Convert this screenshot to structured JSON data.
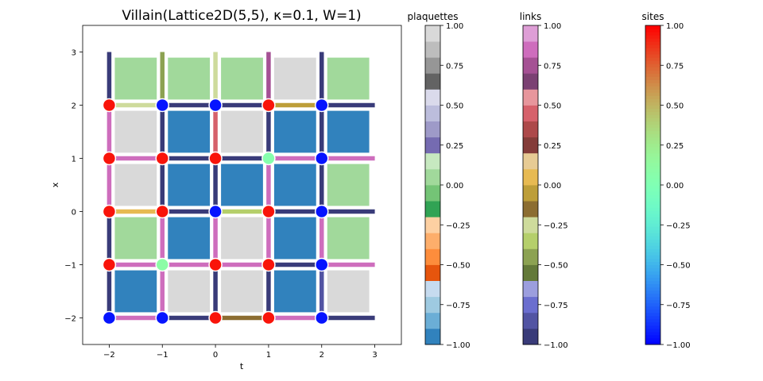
{
  "chart_data": {
    "type": "heatmap",
    "title": "Villain(Lattice2D(5,5), κ=0.1, W=1)",
    "xlabel": "t",
    "ylabel": "x",
    "xlim": [
      -2.5,
      3.5
    ],
    "ylim": [
      -2.5,
      3.5
    ],
    "xticks": [
      -2,
      -1,
      0,
      1,
      2,
      3
    ],
    "yticks": [
      -2,
      -1,
      0,
      1,
      2,
      3
    ],
    "site_t": [
      -2,
      -1,
      0,
      1,
      2
    ],
    "site_x": [
      -2,
      -1,
      0,
      1,
      2
    ],
    "plaquette_rows_x": [
      -2,
      -1,
      0,
      1,
      2
    ],
    "plaquettes": [
      [
        -0.95,
        0.95,
        0.95,
        -0.95,
        0.95
      ],
      [
        0.05,
        -0.95,
        0.95,
        -0.95,
        0.05
      ],
      [
        0.95,
        -0.95,
        -0.95,
        -0.95,
        0.05
      ],
      [
        0.95,
        -0.95,
        0.95,
        -0.95,
        -0.95
      ],
      [
        0.05,
        0.05,
        0.05,
        0.95,
        0.05
      ]
    ],
    "links_t": [
      [
        0.85,
        -0.95,
        -0.2,
        0.85,
        -0.95
      ],
      [
        0.85,
        0.85,
        0.85,
        -0.95,
        0.85
      ],
      [
        0.05,
        -0.95,
        -0.4,
        -0.95,
        -0.95
      ],
      [
        0.85,
        -0.95,
        -0.95,
        0.85,
        0.85
      ],
      [
        -0.3,
        -0.95,
        -0.95,
        -0.05,
        -0.95
      ]
    ],
    "links_x": [
      [
        -0.95,
        0.85,
        -0.95,
        -0.95,
        -0.85
      ],
      [
        -0.95,
        0.85,
        0.85,
        0.85,
        0.85
      ],
      [
        0.85,
        -0.95,
        -0.95,
        0.85,
        -0.95
      ],
      [
        0.85,
        -0.95,
        0.45,
        -0.95,
        -0.95
      ],
      [
        -0.95,
        -0.45,
        -0.3,
        0.75,
        -0.95
      ]
    ],
    "sites": [
      [
        -0.95,
        -0.95,
        0.95,
        0.95,
        -0.95
      ],
      [
        0.95,
        0.1,
        0.95,
        0.95,
        -0.95
      ],
      [
        0.95,
        0.95,
        -0.95,
        0.95,
        -0.95
      ],
      [
        0.95,
        0.95,
        0.95,
        0.05,
        -0.95
      ],
      [
        0.95,
        -0.95,
        -0.95,
        0.95,
        -0.95
      ]
    ],
    "colorbars": [
      {
        "label": "plaquettes",
        "ticks": [
          "1.00",
          "0.75",
          "0.50",
          "0.25",
          "0.00",
          "−0.25",
          "−0.50",
          "−0.75",
          "−1.00"
        ],
        "range": [
          -1,
          1
        ],
        "colors": [
          "#3182bd",
          "#6baed6",
          "#9ecae1",
          "#c6dbef",
          "#e6550d",
          "#fd8d3c",
          "#fdae6b",
          "#fdd0a2",
          "#31a354",
          "#74c476",
          "#a1d99b",
          "#c7e9c0",
          "#756bb1",
          "#9e9ac8",
          "#bcbddc",
          "#dadaeb",
          "#636363",
          "#969696",
          "#bdbdbd",
          "#d9d9d9"
        ]
      },
      {
        "label": "links",
        "ticks": [
          "1.00",
          "0.75",
          "0.50",
          "0.25",
          "0.00",
          "−0.25",
          "−0.50",
          "−0.75",
          "−1.00"
        ],
        "range": [
          -1,
          1
        ],
        "colors": [
          "#393b79",
          "#5254a3",
          "#6b6ecf",
          "#9c9ede",
          "#637939",
          "#8ca252",
          "#b5cf6b",
          "#cedb9c",
          "#8c6d31",
          "#bd9e39",
          "#e7ba52",
          "#e7cb94",
          "#843c39",
          "#ad494a",
          "#d6616b",
          "#e7969c",
          "#7b4173",
          "#a55194",
          "#ce6dbd",
          "#de9ed6"
        ]
      },
      {
        "label": "sites",
        "ticks": [
          "1.00",
          "0.75",
          "0.50",
          "0.25",
          "0.00",
          "−0.25",
          "−0.50",
          "−0.75",
          "−1.00"
        ],
        "range": [
          -1,
          1
        ],
        "colormap": "rainbow"
      }
    ]
  }
}
